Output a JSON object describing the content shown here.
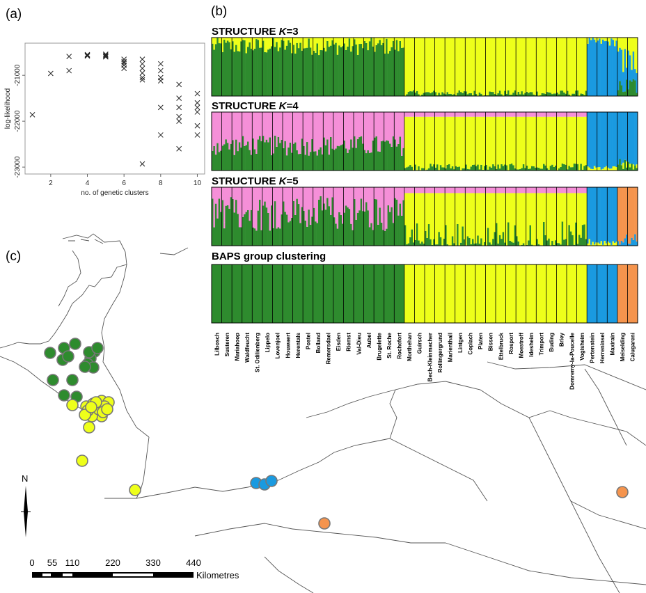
{
  "panels": {
    "a": "(a)",
    "b": "(b)",
    "c": "(c)"
  },
  "colors": {
    "green": "#2e8b2e",
    "yellow": "#eeff1a",
    "blue": "#1a9ae0",
    "pink": "#f58fd8",
    "orange": "#f5944d",
    "marker_gray": "#777777"
  },
  "chart_data": [
    {
      "type": "scatter",
      "panel": "(a)",
      "xlabel": "no. of genetic clusters",
      "ylabel": "log-likelihood",
      "xlim": [
        0.6,
        10.4
      ],
      "ylim": [
        -23150,
        -20300
      ],
      "xticks": [
        2,
        4,
        6,
        8,
        10
      ],
      "yticks": [
        -21000,
        -22000,
        -23000
      ],
      "marker": "x",
      "points": [
        [
          1,
          -21860
        ],
        [
          2,
          -20960
        ],
        [
          3,
          -20590
        ],
        [
          3,
          -20900
        ],
        [
          4,
          -20550
        ],
        [
          4,
          -20560
        ],
        [
          4,
          -20570
        ],
        [
          4,
          -20580
        ],
        [
          5,
          -20540
        ],
        [
          5,
          -20560
        ],
        [
          5,
          -20580
        ],
        [
          5,
          -20600
        ],
        [
          6,
          -20650
        ],
        [
          6,
          -20700
        ],
        [
          6,
          -20730
        ],
        [
          6,
          -20780
        ],
        [
          6,
          -20850
        ],
        [
          7,
          -20650
        ],
        [
          7,
          -20750
        ],
        [
          7,
          -20850
        ],
        [
          7,
          -20950
        ],
        [
          7,
          -21050
        ],
        [
          7,
          -21100
        ],
        [
          7,
          -22930
        ],
        [
          8,
          -20750
        ],
        [
          8,
          -20900
        ],
        [
          8,
          -21050
        ],
        [
          8,
          -21120
        ],
        [
          8,
          -21700
        ],
        [
          8,
          -22300
        ],
        [
          9,
          -21200
        ],
        [
          9,
          -21500
        ],
        [
          9,
          -21700
        ],
        [
          9,
          -21900
        ],
        [
          9,
          -22000
        ],
        [
          9,
          -22600
        ],
        [
          10,
          -21400
        ],
        [
          10,
          -21600
        ],
        [
          10,
          -21700
        ],
        [
          10,
          -21800
        ],
        [
          10,
          -22100
        ],
        [
          10,
          -22300
        ]
      ]
    },
    {
      "type": "bar",
      "panel": "(b)",
      "stacked": true,
      "plots": [
        {
          "title_prefix": "STRUCTURE ",
          "title_k": "K",
          "title_suffix": "=3",
          "k": 3
        },
        {
          "title_prefix": "STRUCTURE ",
          "title_k": "K",
          "title_suffix": "=4",
          "k": 4
        },
        {
          "title_prefix": "STRUCTURE ",
          "title_k": "K",
          "title_suffix": "=5",
          "k": 5
        },
        {
          "title": "BAPS group clustering",
          "k": "baps"
        }
      ],
      "populations": [
        {
          "name": "Lilbosch",
          "baps": "green"
        },
        {
          "name": "Susteren",
          "baps": "green"
        },
        {
          "name": "Mariahoop",
          "baps": "green"
        },
        {
          "name": "Waldfeucht",
          "baps": "green"
        },
        {
          "name": "St. Odilienberg",
          "baps": "green"
        },
        {
          "name": "Lippelo",
          "baps": "green"
        },
        {
          "name": "Lovenjoel",
          "baps": "green"
        },
        {
          "name": "Houwaert",
          "baps": "green"
        },
        {
          "name": "Herentals",
          "baps": "green"
        },
        {
          "name": "Postel",
          "baps": "green"
        },
        {
          "name": "Bolland",
          "baps": "green"
        },
        {
          "name": "Remersdael",
          "baps": "green"
        },
        {
          "name": "Eisden",
          "baps": "green"
        },
        {
          "name": "Riemst",
          "baps": "green"
        },
        {
          "name": "Val-Dieu",
          "baps": "green"
        },
        {
          "name": "Aubel",
          "baps": "green"
        },
        {
          "name": "Brugelette",
          "baps": "green"
        },
        {
          "name": "St. Roche",
          "baps": "green"
        },
        {
          "name": "Rochefort",
          "baps": "green"
        },
        {
          "name": "Morthehan",
          "baps": "yellow"
        },
        {
          "name": "Guirsch",
          "baps": "yellow"
        },
        {
          "name": "Bech-Kleinmacher",
          "baps": "yellow"
        },
        {
          "name": "Rollingergrund",
          "baps": "yellow"
        },
        {
          "name": "Marienthall",
          "baps": "yellow"
        },
        {
          "name": "Lintgen",
          "baps": "yellow"
        },
        {
          "name": "Coplach",
          "baps": "yellow"
        },
        {
          "name": "Platen",
          "baps": "yellow"
        },
        {
          "name": "Bissen",
          "baps": "yellow"
        },
        {
          "name": "Ettelbruck",
          "baps": "yellow"
        },
        {
          "name": "Rosport",
          "baps": "yellow"
        },
        {
          "name": "Moestroff",
          "baps": "yellow"
        },
        {
          "name": "Idesheim",
          "baps": "yellow"
        },
        {
          "name": "Trimport",
          "baps": "yellow"
        },
        {
          "name": "Buding",
          "baps": "yellow"
        },
        {
          "name": "Briey",
          "baps": "yellow"
        },
        {
          "name": "Domremy-la-Poucelle",
          "baps": "yellow"
        },
        {
          "name": "Vogisheim",
          "baps": "yellow"
        },
        {
          "name": "Pertenstein",
          "baps": "blue"
        },
        {
          "name": "Herreninsel",
          "baps": "blue"
        },
        {
          "name": "Maxirain",
          "baps": "blue"
        },
        {
          "name": "Meiselding",
          "baps": "orange"
        },
        {
          "name": "Calugareni",
          "baps": "orange"
        }
      ]
    },
    {
      "type": "scatter",
      "panel": "(c)",
      "north_label": "N",
      "scale_ticks": [
        "0",
        "55",
        "110",
        "220",
        "330",
        "440"
      ],
      "scale_unit": "Kilometres",
      "sites_green": 16,
      "sites_yellow": 21,
      "sites_blue": 3,
      "sites_orange": 2
    }
  ]
}
